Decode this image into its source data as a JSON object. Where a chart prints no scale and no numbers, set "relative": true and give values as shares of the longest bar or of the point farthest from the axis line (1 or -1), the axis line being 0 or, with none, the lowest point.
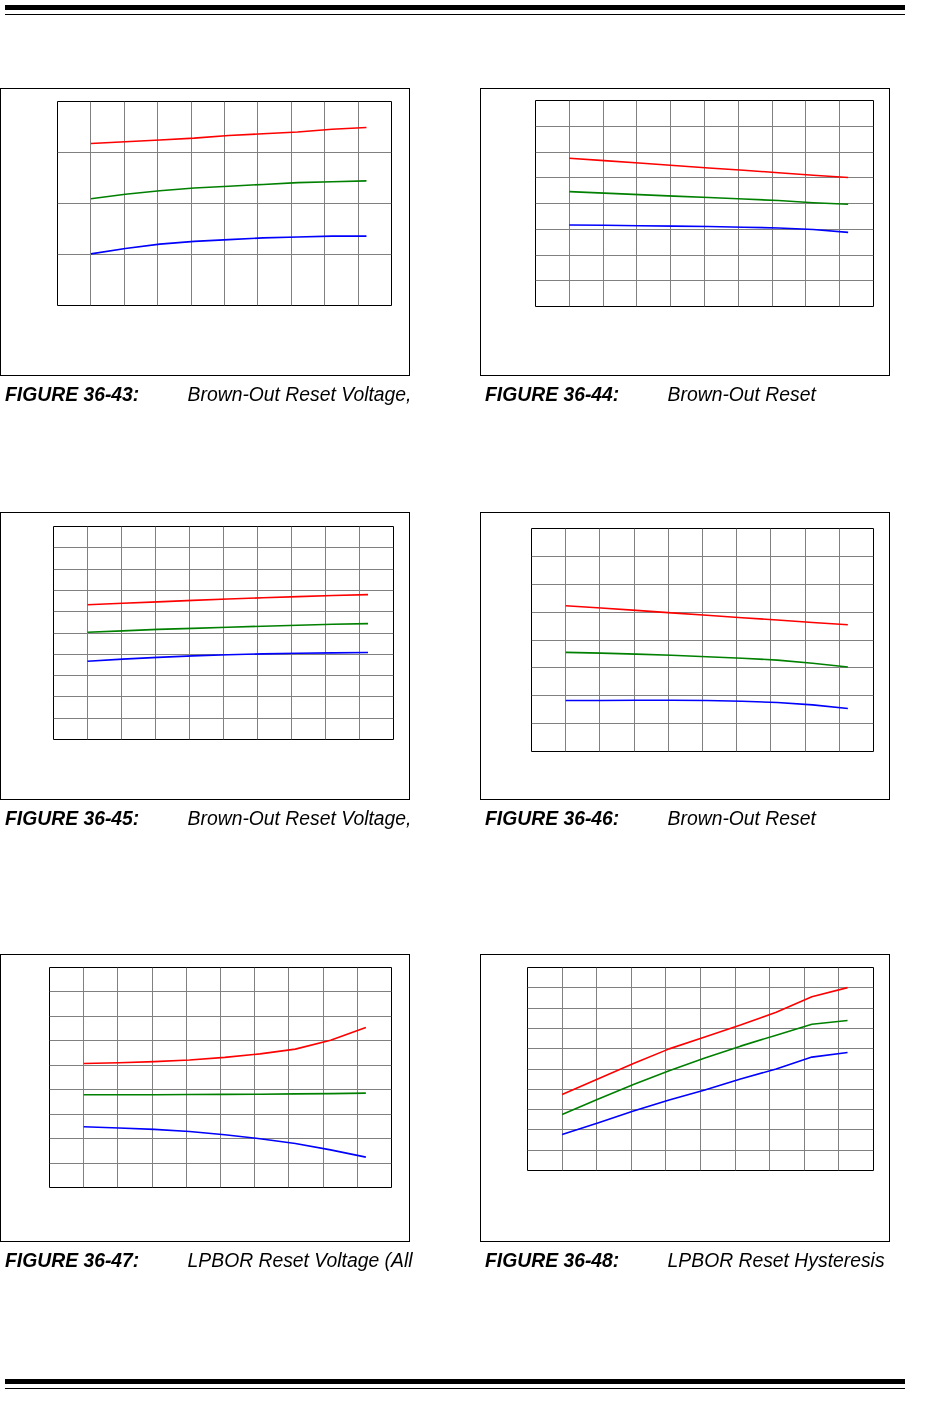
{
  "chart_data": [
    {
      "type": "line",
      "relative": true,
      "grid": true,
      "title": "FIGURE 36-43: Brown-Out Reset Voltage,",
      "categories": [
        null,
        null,
        null,
        null,
        null,
        null,
        null,
        null,
        null
      ],
      "series": [
        {
          "color": "#ff0000",
          "values": [
            0.91,
            0.92,
            0.93,
            0.94,
            0.955,
            0.965,
            0.975,
            0.99,
            1.0
          ]
        },
        {
          "color": "#0000ff",
          "values": [
            0.29,
            0.32,
            0.345,
            0.36,
            0.37,
            0.38,
            0.385,
            0.39,
            0.39
          ]
        },
        {
          "color": "#008000",
          "values": [
            0.6,
            0.625,
            0.645,
            0.66,
            0.67,
            0.68,
            0.69,
            0.695,
            0.7
          ]
        }
      ]
    },
    {
      "type": "line",
      "relative": true,
      "grid": true,
      "title": "FIGURE 36-44: Brown-Out Reset",
      "categories": [
        null,
        null,
        null,
        null,
        null,
        null,
        null,
        null,
        null
      ],
      "series": [
        {
          "color": "#008000",
          "values": [
            0.775,
            0.765,
            0.755,
            0.745,
            0.735,
            0.725,
            0.715,
            0.7,
            0.69
          ]
        },
        {
          "color": "#ff0000",
          "values": [
            1.0,
            0.984,
            0.968,
            0.951,
            0.935,
            0.919,
            0.903,
            0.886,
            0.87
          ]
        },
        {
          "color": "#0000ff",
          "values": [
            0.55,
            0.548,
            0.545,
            0.542,
            0.54,
            0.535,
            0.53,
            0.52,
            0.5
          ]
        }
      ]
    },
    {
      "type": "line",
      "relative": true,
      "grid": true,
      "title": "FIGURE 36-45: Brown-Out Reset Voltage,",
      "categories": [
        null,
        null,
        null,
        null,
        null,
        null,
        null,
        null,
        null
      ],
      "series": [
        {
          "color": "#ff0000",
          "values": [
            0.93,
            0.94,
            0.95,
            0.96,
            0.97,
            0.978,
            0.986,
            0.994,
            1.0
          ]
        },
        {
          "color": "#0000ff",
          "values": [
            0.54,
            0.555,
            0.567,
            0.577,
            0.585,
            0.591,
            0.595,
            0.598,
            0.6
          ]
        },
        {
          "color": "#008000",
          "values": [
            0.74,
            0.75,
            0.76,
            0.767,
            0.775,
            0.782,
            0.789,
            0.795,
            0.8
          ]
        }
      ]
    },
    {
      "type": "line",
      "relative": true,
      "grid": true,
      "title": "FIGURE 36-46: Brown-Out Reset",
      "categories": [
        null,
        null,
        null,
        null,
        null,
        null,
        null,
        null,
        null
      ],
      "series": [
        {
          "color": "#008000",
          "values": [
            0.68,
            0.675,
            0.668,
            0.66,
            0.65,
            0.64,
            0.627,
            0.605,
            0.58
          ]
        },
        {
          "color": "#ff0000",
          "values": [
            1.0,
            0.985,
            0.968,
            0.951,
            0.935,
            0.918,
            0.902,
            0.885,
            0.87
          ]
        },
        {
          "color": "#0000ff",
          "values": [
            0.35,
            0.35,
            0.352,
            0.352,
            0.35,
            0.345,
            0.336,
            0.32,
            0.295
          ]
        }
      ]
    },
    {
      "type": "line",
      "relative": true,
      "grid": true,
      "title": "FIGURE 36-47: LPBOR Reset Voltage (All",
      "categories": [
        null,
        null,
        null,
        null,
        null,
        null,
        null,
        null,
        null
      ],
      "series": [
        {
          "color": "#ff0000",
          "values": [
            0.775,
            0.78,
            0.787,
            0.797,
            0.813,
            0.835,
            0.865,
            0.92,
            1.0
          ]
        },
        {
          "color": "#008000",
          "values": [
            0.58,
            0.58,
            0.58,
            0.581,
            0.582,
            0.583,
            0.585,
            0.587,
            0.59
          ]
        },
        {
          "color": "#0000ff",
          "values": [
            0.38,
            0.372,
            0.363,
            0.35,
            0.33,
            0.305,
            0.275,
            0.235,
            0.19
          ]
        }
      ]
    },
    {
      "type": "line",
      "relative": true,
      "grid": true,
      "title": "FIGURE 36-48: LPBOR Reset Hysteresis",
      "categories": [
        null,
        null,
        null,
        null,
        null,
        null,
        null,
        null,
        null
      ],
      "series": [
        {
          "color": "#008000",
          "values": [
            0.306,
            0.39,
            0.47,
            0.545,
            0.615,
            0.68,
            0.74,
            0.8,
            0.82
          ]
        },
        {
          "color": "#ff0000",
          "values": [
            0.415,
            0.5,
            0.585,
            0.665,
            0.73,
            0.795,
            0.865,
            0.95,
            1.0
          ]
        },
        {
          "color": "#0000ff",
          "values": [
            0.197,
            0.26,
            0.325,
            0.385,
            0.44,
            0.5,
            0.555,
            0.62,
            0.645
          ]
        }
      ]
    }
  ]
}
